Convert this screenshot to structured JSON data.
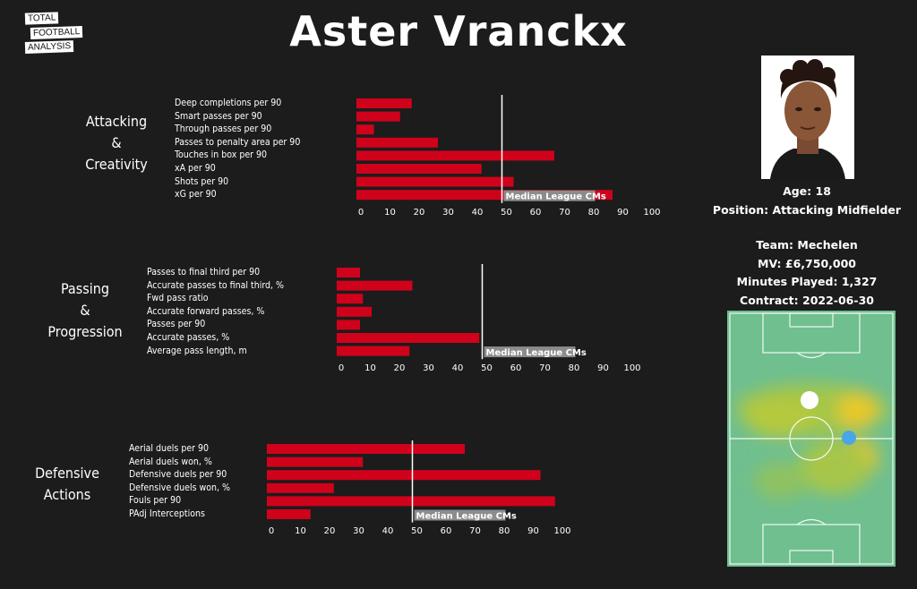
{
  "logo": {
    "line1": "TOTAL",
    "line2": "FOOTBALL",
    "line3": "ANALYSIS"
  },
  "title": "Aster Vranckx",
  "median_label": "Median League CMs",
  "sections": {
    "attacking": {
      "label_lines": [
        "Attacking",
        "&",
        "Creativity"
      ],
      "metrics": [
        "Deep completions per 90",
        "Smart passes per 90",
        "Through passes per 90",
        "Passes to penalty area per 90",
        "Touches in box per 90",
        "xA per 90",
        "Shots per 90",
        "xG per 90"
      ]
    },
    "passing": {
      "label_lines": [
        "Passing",
        "&",
        "Progression"
      ],
      "metrics": [
        "Passes to final third per 90",
        "Accurate passes to final third, %",
        "Fwd pass ratio",
        "Accurate forward passes, %",
        "Passes per 90",
        "Accurate passes, %",
        "Average pass length, m"
      ]
    },
    "defensive": {
      "label_lines": [
        "Defensive",
        "Actions"
      ],
      "metrics": [
        "Aerial duels per 90",
        "Aerial duels won, %",
        "Defensive duels per 90",
        "Defensive duels won, %",
        "Fouls per 90",
        "PAdj Interceptions"
      ]
    }
  },
  "player_photo": {
    "icon": "player-portrait-icon"
  },
  "info": {
    "age": "Age: 18",
    "position": "Position: Attacking Midfielder",
    "team": "Team: Mechelen",
    "mv": "MV: £6,750,000",
    "minutes": "Minutes Played: 1,327",
    "contract": "Contract: 2022-06-30"
  },
  "heatmap": {
    "icon": "pitch-heatmap-icon"
  },
  "colors": {
    "bar": "#d0021b",
    "background": "#1c1c1c",
    "pitch": "#6fbf8f"
  },
  "chart_data": [
    {
      "type": "bar",
      "orientation": "horizontal",
      "categories": [
        "Deep completions per 90",
        "Smart passes per 90",
        "Through passes per 90",
        "Passes to penalty area per 90",
        "Touches in box per 90",
        "xA per 90",
        "Shots per 90",
        "xG per 90"
      ],
      "values": [
        19,
        15,
        6,
        28,
        68,
        43,
        54,
        88
      ],
      "median": 50,
      "median_label": "Median League CMs",
      "xlim": [
        0,
        100
      ],
      "xticks": [
        "0",
        "10",
        "20",
        "30",
        "40",
        "50",
        "60",
        "70",
        "80",
        "90",
        "100"
      ]
    },
    {
      "type": "bar",
      "orientation": "horizontal",
      "categories": [
        "Passes to final third per 90",
        "Accurate passes to final third, %",
        "Fwd pass ratio",
        "Accurate forward passes, %",
        "Passes per 90",
        "Accurate passes, %",
        "Average pass length, m"
      ],
      "values": [
        8,
        26,
        9,
        12,
        8,
        49,
        25
      ],
      "median": 50,
      "median_label": "Median League CMs",
      "xlim": [
        0,
        100
      ],
      "xticks": [
        "0",
        "10",
        "20",
        "30",
        "40",
        "50",
        "60",
        "70",
        "80",
        "90",
        "100"
      ]
    },
    {
      "type": "bar",
      "orientation": "horizontal",
      "categories": [
        "Aerial duels per 90",
        "Aerial duels won, %",
        "Defensive duels per 90",
        "Defensive duels won, %",
        "Fouls per 90",
        "PAdj Interceptions"
      ],
      "values": [
        68,
        33,
        94,
        23,
        99,
        15
      ],
      "median": 50,
      "median_label": "Median League CMs",
      "xlim": [
        0,
        100
      ],
      "xticks": [
        "0",
        "10",
        "20",
        "30",
        "40",
        "50",
        "60",
        "70",
        "80",
        "90",
        "100"
      ]
    }
  ]
}
